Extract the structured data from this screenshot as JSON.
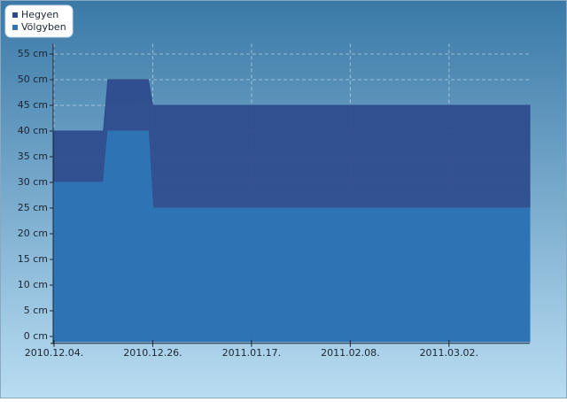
{
  "chart_data": {
    "type": "area",
    "x": [
      "2010.12.04.",
      "2010.12.15.",
      "2010.12.16.",
      "2010.12.25.",
      "2010.12.26.",
      "2011.03.20."
    ],
    "series": [
      {
        "name": "Hegyen",
        "color": "#2c4a8c",
        "values": [
          40,
          40,
          50,
          50,
          45,
          45
        ]
      },
      {
        "name": "Völgyben",
        "color": "#2e76b6",
        "values": [
          30,
          30,
          40,
          40,
          25,
          25
        ]
      }
    ],
    "xlim": [
      "2010.12.04.",
      "2011.03.20."
    ],
    "xticks": [
      "2010.12.04.",
      "2010.12.26.",
      "2011.01.17.",
      "2011.02.08.",
      "2011.03.02."
    ],
    "ylim": [
      -1,
      57
    ],
    "yticks": [
      {
        "value": 0,
        "label": "0 cm"
      },
      {
        "value": 5,
        "label": "5 cm"
      },
      {
        "value": 10,
        "label": "10 cm"
      },
      {
        "value": 15,
        "label": "15 cm"
      },
      {
        "value": 20,
        "label": "20 cm"
      },
      {
        "value": 25,
        "label": "25 cm"
      },
      {
        "value": 30,
        "label": "30 cm"
      },
      {
        "value": 35,
        "label": "35 cm"
      },
      {
        "value": 40,
        "label": "40 cm"
      },
      {
        "value": 45,
        "label": "45 cm"
      },
      {
        "value": 50,
        "label": "50 cm"
      },
      {
        "value": 55,
        "label": "55 cm"
      }
    ],
    "grid": true,
    "legend": "top-left"
  }
}
